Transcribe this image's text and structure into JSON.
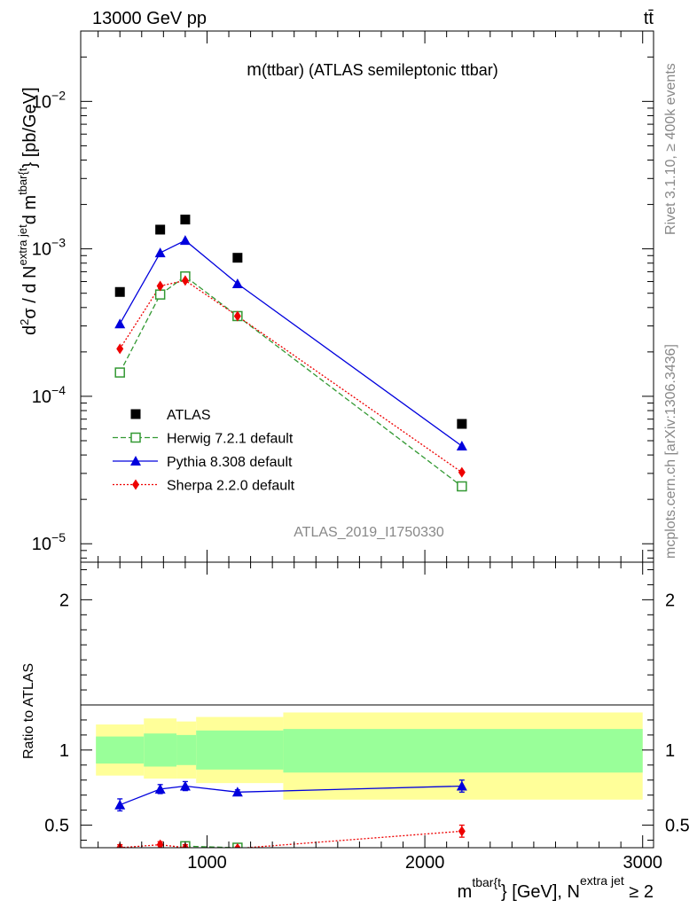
{
  "header": {
    "energy_label": "13000 GeV pp",
    "process_label": "tt̄",
    "rivet_label": "Rivet 3.1.10, ≥ 400k events",
    "mcplots_label": "mcplots.cern.ch [arXiv:1306.3436]",
    "analysis_id": "ATLAS_2019_I1750330"
  },
  "chart_data": [
    {
      "type": "line",
      "panel": "main",
      "title": "m(ttbar) (ATLAS semileptonic ttbar)",
      "title_main": "m",
      "title_sub": "(ttbar) (ATLAS semileptonic ttbar)",
      "ylabel_parts": [
        "d",
        "2",
        "σ  /  d N",
        "extra jet",
        "d m",
        "tbar{t",
        "} [pb/GeV]"
      ],
      "ylabel": "d²σ / d N^{extra jet} d m^{tbar{t}} [pb/GeV]",
      "yscale": "log",
      "ylim": [
        7.5e-06,
        0.03
      ],
      "xlim": [
        420,
        3050
      ],
      "y_ticks": [
        {
          "value": 1e-05,
          "base": "10",
          "exp": "−5"
        },
        {
          "value": 0.0001,
          "base": "10",
          "exp": "−4"
        },
        {
          "value": 0.001,
          "base": "10",
          "exp": "−3"
        },
        {
          "value": 0.01,
          "base": "10",
          "exp": "−2"
        }
      ],
      "legend_position": "lower-left",
      "series": [
        {
          "name": "ATLAS",
          "color": "#000000",
          "marker": "square",
          "line": "none",
          "x": [
            600,
            785,
            900,
            1140,
            2170
          ],
          "y": [
            0.00051,
            0.00135,
            0.00158,
            0.00087,
            6.5e-05
          ]
        },
        {
          "name": "Herwig 7.2.1 default",
          "color": "#339933",
          "marker": "open-square",
          "line": "dashed",
          "x": [
            600,
            785,
            900,
            1140,
            2170
          ],
          "y": [
            0.000145,
            0.00049,
            0.00065,
            0.00035,
            2.45e-05
          ]
        },
        {
          "name": "Pythia 8.308 default",
          "color": "#0000dd",
          "marker": "triangle",
          "line": "solid",
          "x": [
            600,
            785,
            900,
            1140,
            2170
          ],
          "y": [
            0.00031,
            0.00094,
            0.00114,
            0.00058,
            4.6e-05
          ]
        },
        {
          "name": "Sherpa 2.2.0 default",
          "color": "#ee0000",
          "marker": "diamond",
          "line": "dotted",
          "x": [
            600,
            785,
            900,
            1140,
            2170
          ],
          "y": [
            0.00021,
            0.00056,
            0.00061,
            0.00035,
            3.05e-05
          ]
        }
      ]
    },
    {
      "type": "line",
      "panel": "ratio",
      "ylabel": "Ratio to ATLAS",
      "xlabel_parts": [
        "m",
        "tbar{t",
        "} [GeV], N",
        "extra jet",
        " ≥ 2"
      ],
      "xlabel": "m^{tbar{t}} [GeV], N^{extra jet} ≥ 2",
      "ylim": [
        0.35,
        2.25
      ],
      "xlim": [
        420,
        3050
      ],
      "y_ticks": [
        0.5,
        1,
        2
      ],
      "x_ticks": [
        1000,
        2000,
        3000
      ],
      "bands": {
        "edges": [
          490,
          710,
          860,
          950,
          1350,
          3000
        ],
        "yellow": [
          [
            0.83,
            1.17
          ],
          [
            0.81,
            1.21
          ],
          [
            0.81,
            1.19
          ],
          [
            0.78,
            1.22
          ],
          [
            0.67,
            1.25
          ]
        ],
        "green": [
          [
            0.91,
            1.09
          ],
          [
            0.89,
            1.11
          ],
          [
            0.9,
            1.1
          ],
          [
            0.87,
            1.13
          ],
          [
            0.85,
            1.14
          ]
        ],
        "yellow_color": "#ffff99",
        "green_color": "#99ff99"
      },
      "series": [
        {
          "name": "Pythia 8.308 default",
          "color": "#0000dd",
          "marker": "triangle",
          "line": "solid",
          "x": [
            600,
            785,
            900,
            1140,
            2170
          ],
          "y": [
            0.635,
            0.74,
            0.76,
            0.72,
            0.76
          ],
          "yerr": [
            0.04,
            0.03,
            0.03,
            0.015,
            0.04
          ]
        },
        {
          "name": "Herwig 7.2.1 default",
          "color": "#339933",
          "marker": "open-square",
          "line": "dashed",
          "x": [
            900,
            1140
          ],
          "y": [
            0.36,
            0.35
          ],
          "yerr": [
            0.02,
            0.01
          ]
        },
        {
          "name": "Sherpa 2.2.0 default",
          "color": "#ee0000",
          "marker": "diamond",
          "line": "dotted",
          "x": [
            600,
            785,
            900,
            1140,
            2170
          ],
          "y": [
            0.35,
            0.37,
            0.35,
            0.345,
            0.46
          ],
          "yerr": [
            0.02,
            0.02,
            0.02,
            0.01,
            0.04
          ]
        }
      ]
    }
  ]
}
